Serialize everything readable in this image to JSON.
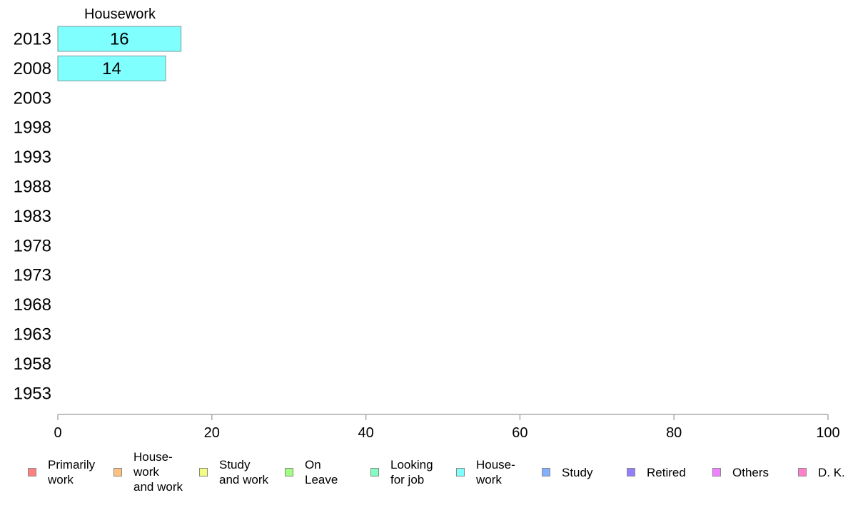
{
  "chart_data": {
    "type": "bar",
    "orientation": "horizontal",
    "series_title": "Housework",
    "categories": [
      "2013",
      "2008",
      "2003",
      "1998",
      "1993",
      "1988",
      "1983",
      "1978",
      "1973",
      "1968",
      "1963",
      "1958",
      "1953"
    ],
    "values": [
      16,
      14,
      null,
      null,
      null,
      null,
      null,
      null,
      null,
      null,
      null,
      null,
      null
    ],
    "data_labels": [
      "16",
      "14",
      "",
      "",
      "",
      "",
      "",
      "",
      "",
      "",
      "",
      "",
      ""
    ],
    "xlim": [
      0,
      100
    ],
    "xticks": [
      0,
      20,
      40,
      60,
      80,
      100
    ],
    "bar_color": "#80ffff",
    "grid": false
  },
  "legend": {
    "items": [
      {
        "label": "Primarily\nwork",
        "color": "#ff8080"
      },
      {
        "label": "House-\nwork\nand work",
        "color": "#ffc080"
      },
      {
        "label": "Study\nand work",
        "color": "#f0ff80"
      },
      {
        "label": "On\nLeave",
        "color": "#a0ff80"
      },
      {
        "label": "Looking\nfor job",
        "color": "#80ffc0"
      },
      {
        "label": "House-\nwork",
        "color": "#80ffff"
      },
      {
        "label": "Study",
        "color": "#80b0ff"
      },
      {
        "label": "Retired",
        "color": "#9080ff"
      },
      {
        "label": "Others",
        "color": "#f080ff"
      },
      {
        "label": "D. K.",
        "color": "#ff80c8"
      }
    ]
  }
}
